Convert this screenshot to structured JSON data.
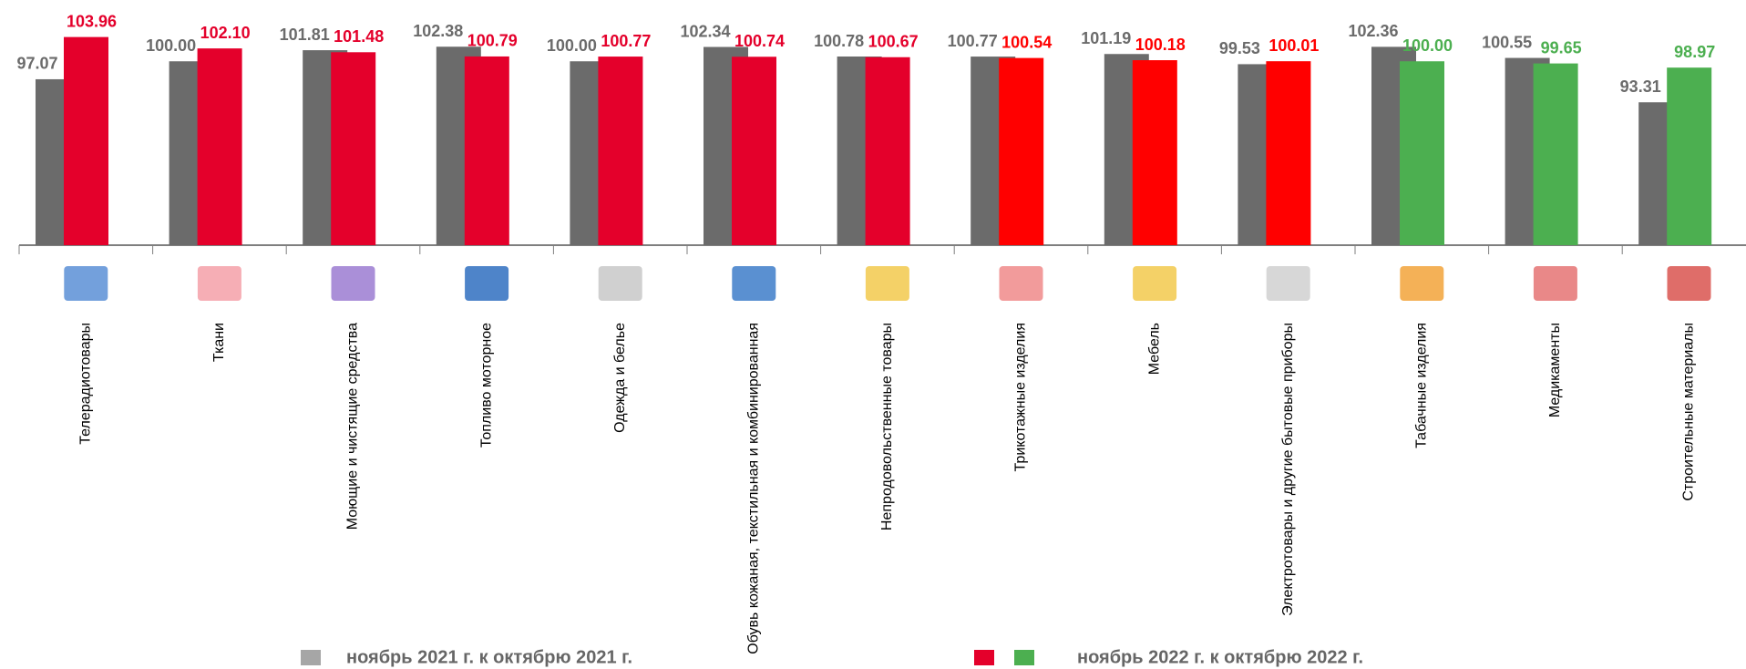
{
  "chart_data": {
    "type": "bar",
    "categories": [
      "Телерадиотовары",
      "Ткани",
      "Моющие и чистящие средства",
      "Топливо моторное",
      "Одежда и белье",
      "Обувь кожаная, текстильная и комбинированная",
      "Непродовольственные товары",
      "Трикотажные изделия",
      "Мебель",
      "Электротовары и другие бытовые приборы",
      "Табачные изделия",
      "Медикаменты",
      "Строительные материалы"
    ],
    "series": [
      {
        "name": "ноябрь 2021 г. к октябрю 2021 г.",
        "color": "#6b6b6b",
        "label_color": "#6b6b6b",
        "values": [
          97.07,
          100.0,
          101.81,
          102.38,
          100.0,
          102.34,
          100.78,
          100.77,
          101.19,
          99.53,
          102.36,
          100.55,
          93.31
        ],
        "value_labels": [
          "97.07",
          "100.00",
          "101.81",
          "102.38",
          "100.00",
          "102.34",
          "100.78",
          "100.77",
          "101.19",
          "99.53",
          "102.36",
          "100.55",
          "93.31"
        ]
      },
      {
        "name": "ноябрь 2022 г. к октябрю 2022 г.",
        "color": "#e4002b",
        "legend_colors": [
          "#e4002b",
          "#4caf50"
        ],
        "colors": [
          "#e4002b",
          "#e4002b",
          "#e4002b",
          "#e4002b",
          "#e4002b",
          "#e4002b",
          "#e4002b",
          "#ff0000",
          "#ff0000",
          "#ff0000",
          "#4caf50",
          "#4caf50",
          "#4caf50"
        ],
        "values": [
          103.96,
          102.1,
          101.48,
          100.79,
          100.77,
          100.74,
          100.67,
          100.54,
          100.18,
          100.01,
          100.0,
          99.65,
          98.97
        ],
        "value_labels": [
          "103.96",
          "102.10",
          "101.48",
          "100.79",
          "100.77",
          "100.74",
          "100.67",
          "100.54",
          "100.18",
          "100.01",
          "100.00",
          "99.65",
          "98.97"
        ]
      }
    ],
    "ylim": [
      70,
      110
    ],
    "grid": false
  }
}
